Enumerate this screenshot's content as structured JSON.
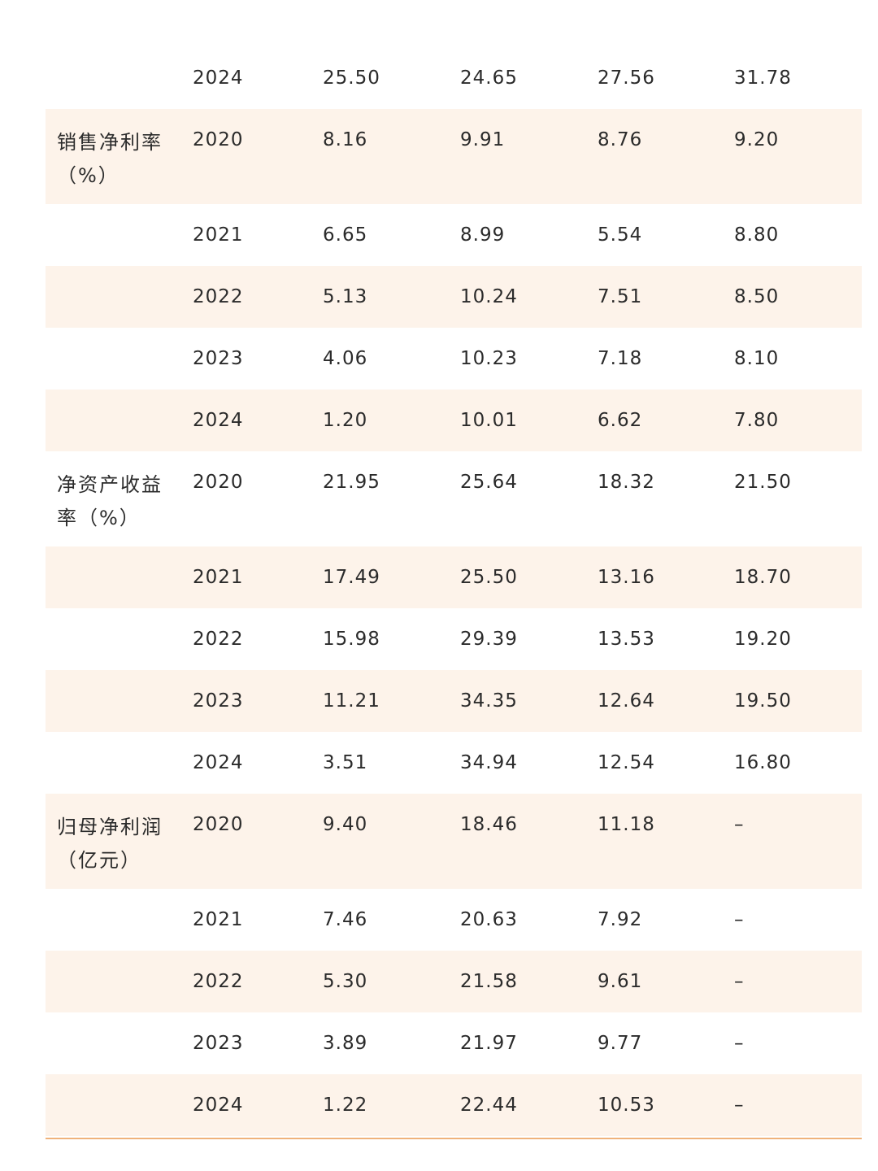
{
  "table": {
    "rows": [
      {
        "label": "",
        "year": "2024",
        "v1": "25.50",
        "v2": "24.65",
        "v3": "27.56",
        "v4": "31.78"
      },
      {
        "label": "销售净利率（%）",
        "year": "2020",
        "v1": "8.16",
        "v2": "9.91",
        "v3": "8.76",
        "v4": "9.20"
      },
      {
        "label": "",
        "year": "2021",
        "v1": "6.65",
        "v2": "8.99",
        "v3": "5.54",
        "v4": "8.80"
      },
      {
        "label": "",
        "year": "2022",
        "v1": "5.13",
        "v2": "10.24",
        "v3": "7.51",
        "v4": "8.50"
      },
      {
        "label": "",
        "year": "2023",
        "v1": "4.06",
        "v2": "10.23",
        "v3": "7.18",
        "v4": "8.10"
      },
      {
        "label": "",
        "year": "2024",
        "v1": "1.20",
        "v2": "10.01",
        "v3": "6.62",
        "v4": "7.80"
      },
      {
        "label": "净资产收益率（%）",
        "year": "2020",
        "v1": "21.95",
        "v2": "25.64",
        "v3": "18.32",
        "v4": "21.50"
      },
      {
        "label": "",
        "year": "2021",
        "v1": "17.49",
        "v2": "25.50",
        "v3": "13.16",
        "v4": "18.70"
      },
      {
        "label": "",
        "year": "2022",
        "v1": "15.98",
        "v2": "29.39",
        "v3": "13.53",
        "v4": "19.20"
      },
      {
        "label": "",
        "year": "2023",
        "v1": "11.21",
        "v2": "34.35",
        "v3": "12.64",
        "v4": "19.50"
      },
      {
        "label": "",
        "year": "2024",
        "v1": "3.51",
        "v2": "34.94",
        "v3": "12.54",
        "v4": "16.80"
      },
      {
        "label": "归母净利润（亿元）",
        "year": "2020",
        "v1": "9.40",
        "v2": "18.46",
        "v3": "11.18",
        "v4": "–"
      },
      {
        "label": "",
        "year": "2021",
        "v1": "7.46",
        "v2": "20.63",
        "v3": "7.92",
        "v4": "–"
      },
      {
        "label": "",
        "year": "2022",
        "v1": "5.30",
        "v2": "21.58",
        "v3": "9.61",
        "v4": "–"
      },
      {
        "label": "",
        "year": "2023",
        "v1": "3.89",
        "v2": "21.97",
        "v3": "9.77",
        "v4": "–"
      },
      {
        "label": "",
        "year": "2024",
        "v1": "1.22",
        "v2": "22.44",
        "v3": "10.53",
        "v4": "–"
      }
    ]
  }
}
